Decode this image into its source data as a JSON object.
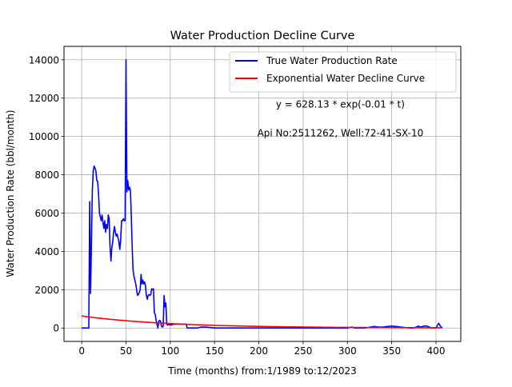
{
  "chart_data": {
    "type": "line",
    "title": "Water Production Decline Curve",
    "xlabel": "Time (months) from:1/1989 to:12/2023",
    "ylabel": "Water Production Rate (bbl/month)",
    "xlim": [
      -20,
      428
    ],
    "ylim": [
      -700,
      14700
    ],
    "xticks": [
      0,
      50,
      100,
      150,
      200,
      250,
      300,
      350,
      400
    ],
    "yticks": [
      0,
      2000,
      4000,
      6000,
      8000,
      10000,
      12000,
      14000
    ],
    "grid": true,
    "legend_position": "top-right",
    "annotations": [
      {
        "text": "y = 628.13 * exp(-0.01 * t)",
        "x": 292,
        "y": 11500
      },
      {
        "text": "Api No:2511262, Well:72-41-SX-10",
        "x": 292,
        "y": 10000
      }
    ],
    "series": [
      {
        "name": "True Water Production Rate",
        "color": "#0000ff",
        "style": "line",
        "points": [
          [
            0,
            0
          ],
          [
            8,
            0
          ],
          [
            9,
            6600
          ],
          [
            10,
            1800
          ],
          [
            11,
            4500
          ],
          [
            12,
            7200
          ],
          [
            13,
            8200
          ],
          [
            14,
            8450
          ],
          [
            15,
            8350
          ],
          [
            16,
            8200
          ],
          [
            17,
            7700
          ],
          [
            18,
            7650
          ],
          [
            19,
            7000
          ],
          [
            20,
            6000
          ],
          [
            21,
            5800
          ],
          [
            22,
            5600
          ],
          [
            23,
            5900
          ],
          [
            24,
            5500
          ],
          [
            25,
            5200
          ],
          [
            26,
            5600
          ],
          [
            27,
            5000
          ],
          [
            28,
            5400
          ],
          [
            29,
            5200
          ],
          [
            30,
            5900
          ],
          [
            31,
            5700
          ],
          [
            32,
            4200
          ],
          [
            33,
            3500
          ],
          [
            34,
            4200
          ],
          [
            35,
            4500
          ],
          [
            36,
            5000
          ],
          [
            37,
            5300
          ],
          [
            38,
            5000
          ],
          [
            39,
            4800
          ],
          [
            40,
            4900
          ],
          [
            41,
            4700
          ],
          [
            42,
            4500
          ],
          [
            43,
            4100
          ],
          [
            44,
            4600
          ],
          [
            45,
            5600
          ],
          [
            46,
            5600
          ],
          [
            47,
            5700
          ],
          [
            48,
            5600
          ],
          [
            49,
            5600
          ],
          [
            50,
            14000
          ],
          [
            51,
            7100
          ],
          [
            52,
            7700
          ],
          [
            53,
            7200
          ],
          [
            54,
            7350
          ],
          [
            55,
            7200
          ],
          [
            56,
            5800
          ],
          [
            57,
            4200
          ],
          [
            58,
            3000
          ],
          [
            59,
            2700
          ],
          [
            60,
            2500
          ],
          [
            61,
            2300
          ],
          [
            62,
            2000
          ],
          [
            63,
            1700
          ],
          [
            64,
            1750
          ],
          [
            65,
            1850
          ],
          [
            66,
            2000
          ],
          [
            67,
            2800
          ],
          [
            68,
            2300
          ],
          [
            69,
            2500
          ],
          [
            70,
            2300
          ],
          [
            71,
            2400
          ],
          [
            72,
            2200
          ],
          [
            73,
            1700
          ],
          [
            74,
            1500
          ],
          [
            75,
            1700
          ],
          [
            76,
            1750
          ],
          [
            77,
            1700
          ],
          [
            78,
            1750
          ],
          [
            79,
            2050
          ],
          [
            80,
            2000
          ],
          [
            81,
            2050
          ],
          [
            82,
            800
          ],
          [
            83,
            700
          ],
          [
            84,
            400
          ],
          [
            85,
            200
          ],
          [
            86,
            0
          ],
          [
            87,
            350
          ],
          [
            88,
            400
          ],
          [
            89,
            350
          ],
          [
            90,
            100
          ],
          [
            91,
            50
          ],
          [
            92,
            100
          ],
          [
            93,
            1700
          ],
          [
            94,
            1100
          ],
          [
            95,
            1300
          ],
          [
            96,
            200
          ],
          [
            97,
            150
          ],
          [
            98,
            200
          ],
          [
            100,
            150
          ],
          [
            104,
            200
          ],
          [
            110,
            200
          ],
          [
            118,
            200
          ],
          [
            119,
            0
          ],
          [
            125,
            0
          ],
          [
            130,
            0
          ],
          [
            135,
            50
          ],
          [
            140,
            50
          ],
          [
            150,
            0
          ],
          [
            300,
            0
          ],
          [
            305,
            50
          ],
          [
            308,
            0
          ],
          [
            320,
            0
          ],
          [
            330,
            80
          ],
          [
            335,
            50
          ],
          [
            340,
            50
          ],
          [
            345,
            80
          ],
          [
            350,
            100
          ],
          [
            355,
            80
          ],
          [
            360,
            50
          ],
          [
            370,
            0
          ],
          [
            375,
            0
          ],
          [
            380,
            100
          ],
          [
            383,
            50
          ],
          [
            386,
            100
          ],
          [
            390,
            100
          ],
          [
            395,
            0
          ],
          [
            400,
            0
          ],
          [
            403,
            250
          ],
          [
            405,
            100
          ],
          [
            407,
            0
          ]
        ]
      },
      {
        "name": "Exponential Water Decline Curve",
        "color": "#ff0000",
        "style": "curve",
        "a": 628.13,
        "b": -0.01,
        "t_range": [
          0,
          407
        ]
      }
    ]
  }
}
